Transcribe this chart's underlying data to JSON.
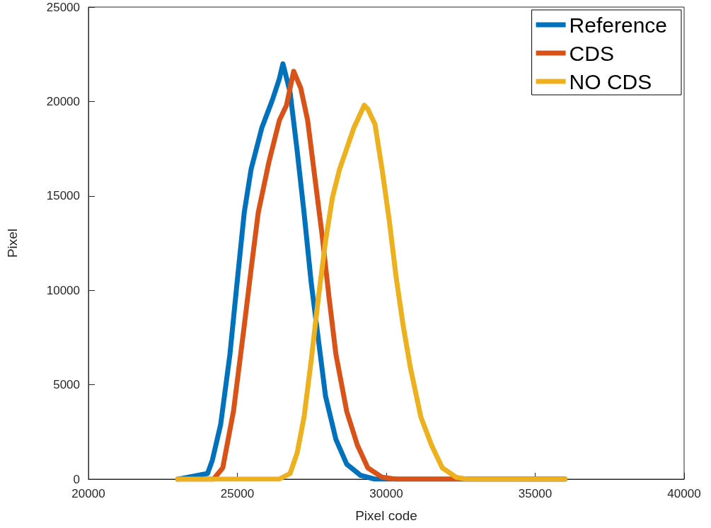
{
  "chart_data": {
    "type": "line",
    "xlabel": "Pixel code",
    "ylabel": "Pixel",
    "xlim": [
      20000,
      40000
    ],
    "xticks": [
      20000,
      25000,
      30000,
      35000,
      40000
    ],
    "ylim": [
      0,
      25000
    ],
    "yticks": [
      0,
      5000,
      10000,
      15000,
      20000,
      25000
    ],
    "grid": false,
    "legend": "top right",
    "marker": "none",
    "line_style": "solid",
    "series": [
      {
        "name": "Reference",
        "color": "#0072bd",
        "x": [
          23000,
          24000,
          24160,
          24440,
          24750,
          24990,
          25230,
          25460,
          25820,
          26180,
          26410,
          26530,
          26770,
          27000,
          27240,
          27480,
          27720,
          27960,
          28310,
          28670,
          29140,
          29620,
          36000
        ],
        "values": [
          0,
          300,
          1000,
          2900,
          6600,
          10400,
          14100,
          16400,
          18600,
          20100,
          21200,
          22000,
          20500,
          17500,
          14100,
          10400,
          7400,
          4400,
          2100,
          800,
          200,
          0,
          0
        ]
      },
      {
        "name": "CDS",
        "color": "#d95319",
        "x": [
          23000,
          24200,
          24510,
          24870,
          25230,
          25460,
          25700,
          26060,
          26410,
          26650,
          26890,
          27130,
          27360,
          27600,
          27840,
          28080,
          28310,
          28670,
          29030,
          29380,
          29860,
          30330,
          36000
        ],
        "values": [
          0,
          0,
          600,
          3600,
          8100,
          11100,
          14100,
          16800,
          19000,
          19800,
          21600,
          20700,
          19000,
          16000,
          13000,
          9600,
          6600,
          3600,
          1800,
          600,
          100,
          0,
          0
        ]
      },
      {
        "name": "NO CDS",
        "color": "#edb120",
        "x": [
          23000,
          26400,
          26770,
          27010,
          27240,
          27480,
          27720,
          27960,
          28190,
          28430,
          28670,
          28910,
          29260,
          29380,
          29620,
          29860,
          30100,
          30330,
          30570,
          30810,
          31160,
          31520,
          31880,
          32350,
          32710,
          36000
        ],
        "values": [
          0,
          0,
          300,
          1400,
          3300,
          6300,
          9600,
          12600,
          14900,
          16400,
          17500,
          18600,
          19800,
          19600,
          18800,
          16400,
          13700,
          10700,
          8100,
          5900,
          3300,
          1800,
          600,
          100,
          0,
          0
        ]
      }
    ]
  }
}
